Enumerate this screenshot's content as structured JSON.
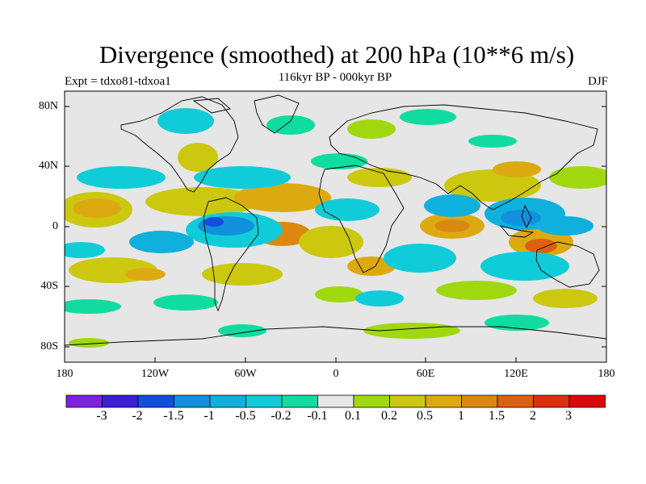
{
  "title": "Divergence (smoothed) at 200 hPa (10**6 m/s)",
  "subtitle": "116kyr BP - 000kyr BP",
  "expt_label": "Expt = tdxo81-tdxoa1",
  "season": "DJF",
  "axes": {
    "y_ticks": [
      "80N",
      "40N",
      "0",
      "40S",
      "80S"
    ],
    "x_ticks": [
      "180",
      "120W",
      "60W",
      "0",
      "60E",
      "120E",
      "180"
    ]
  },
  "colorbar": {
    "labels": [
      "-3",
      "-2",
      "-1.5",
      "-1",
      "-0.5",
      "-0.2",
      "-0.1",
      "0.1",
      "0.2",
      "0.5",
      "1",
      "1.5",
      "2",
      "3"
    ],
    "colors": [
      "#7f1fe0",
      "#3a1fd6",
      "#1050dc",
      "#1190dc",
      "#10b0dc",
      "#10ccd8",
      "#10dca0",
      "#e6e6e6",
      "#a0d810",
      "#ccc810",
      "#dcaa10",
      "#dc8810",
      "#dc6010",
      "#dc3010",
      "#dc0808"
    ]
  },
  "colors": {
    "background_band": "#e6e6e6",
    "frame": "#000000"
  }
}
